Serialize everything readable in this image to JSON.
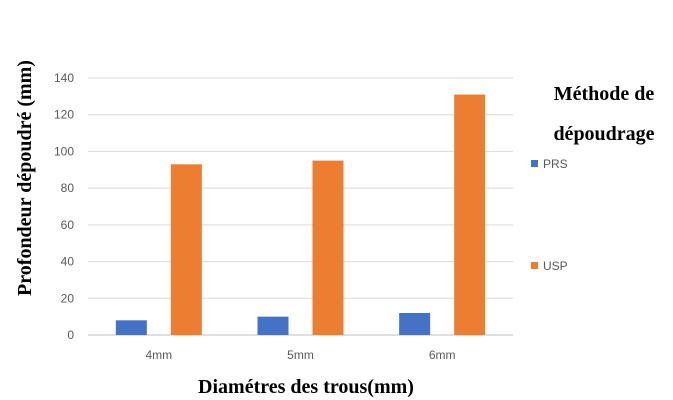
{
  "chart_data": {
    "type": "bar",
    "categories": [
      "4mm",
      "5mm",
      "6mm"
    ],
    "series": [
      {
        "name": "PRS",
        "values": [
          8,
          10,
          12
        ],
        "color": "#4472C4"
      },
      {
        "name": "USP",
        "values": [
          93,
          95,
          131
        ],
        "color": "#ED7D31"
      }
    ],
    "xlabel": "Diamétres des trous(mm)",
    "ylabel": "Profondeur dépoudré (mm)",
    "ylim": [
      0,
      140
    ],
    "yticks": [
      0,
      20,
      40,
      60,
      80,
      100,
      120,
      140
    ],
    "grid": true,
    "legend": {
      "title_lines": [
        "Méthode de",
        "dépoudrage"
      ],
      "placement": "right"
    }
  }
}
